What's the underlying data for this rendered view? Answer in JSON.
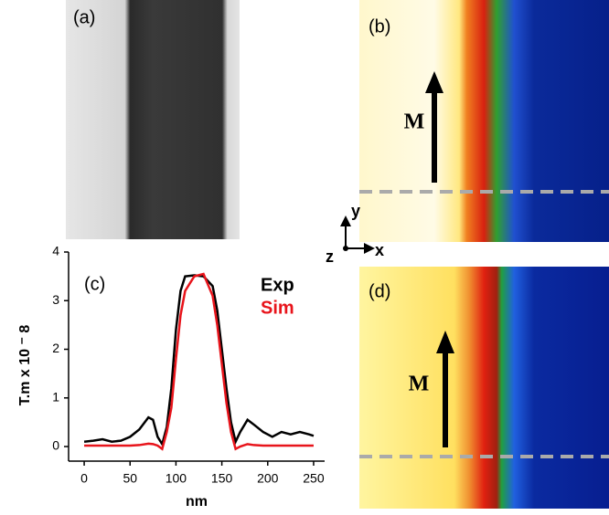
{
  "panels": {
    "a": "(a)",
    "b": "(b)",
    "d": "(d)",
    "magnetization": "M",
    "axis_x": "x",
    "axis_y": "y",
    "axis_z": "z"
  },
  "chart_data": {
    "type": "line",
    "panel_label": "(c)",
    "x_label": "nm",
    "y_label": "T.m x 10 ⁻ 8",
    "x": [
      0,
      10,
      20,
      30,
      40,
      50,
      60,
      70,
      75,
      80,
      85,
      90,
      95,
      100,
      105,
      110,
      120,
      130,
      140,
      145,
      150,
      155,
      160,
      165,
      170,
      178,
      185,
      195,
      205,
      215,
      225,
      235,
      245,
      250
    ],
    "series": [
      {
        "name": "Exp",
        "color": "#000000",
        "values": [
          0.1,
          0.12,
          0.15,
          0.1,
          0.12,
          0.2,
          0.35,
          0.6,
          0.55,
          0.2,
          0.05,
          0.4,
          1.2,
          2.4,
          3.2,
          3.5,
          3.52,
          3.5,
          3.3,
          2.8,
          2.0,
          1.2,
          0.5,
          0.1,
          0.3,
          0.55,
          0.45,
          0.3,
          0.2,
          0.3,
          0.25,
          0.3,
          0.25,
          0.22
        ]
      },
      {
        "name": "Sim",
        "color": "#e8141b",
        "values": [
          0.02,
          0.02,
          0.02,
          0.02,
          0.02,
          0.02,
          0.03,
          0.06,
          0.05,
          0.02,
          -0.05,
          0.3,
          0.8,
          1.8,
          2.7,
          3.2,
          3.5,
          3.55,
          3.1,
          2.5,
          1.7,
          0.9,
          0.3,
          -0.05,
          0.0,
          0.05,
          0.03,
          0.02,
          0.02,
          0.02,
          0.02,
          0.02,
          0.02,
          0.02
        ]
      }
    ],
    "xlim": [
      -17,
      262
    ],
    "ylim": [
      -0.3,
      4
    ],
    "xticks": [
      0,
      50,
      100,
      150,
      200,
      250
    ],
    "yticks": [
      0,
      1,
      2,
      3,
      4
    ]
  }
}
